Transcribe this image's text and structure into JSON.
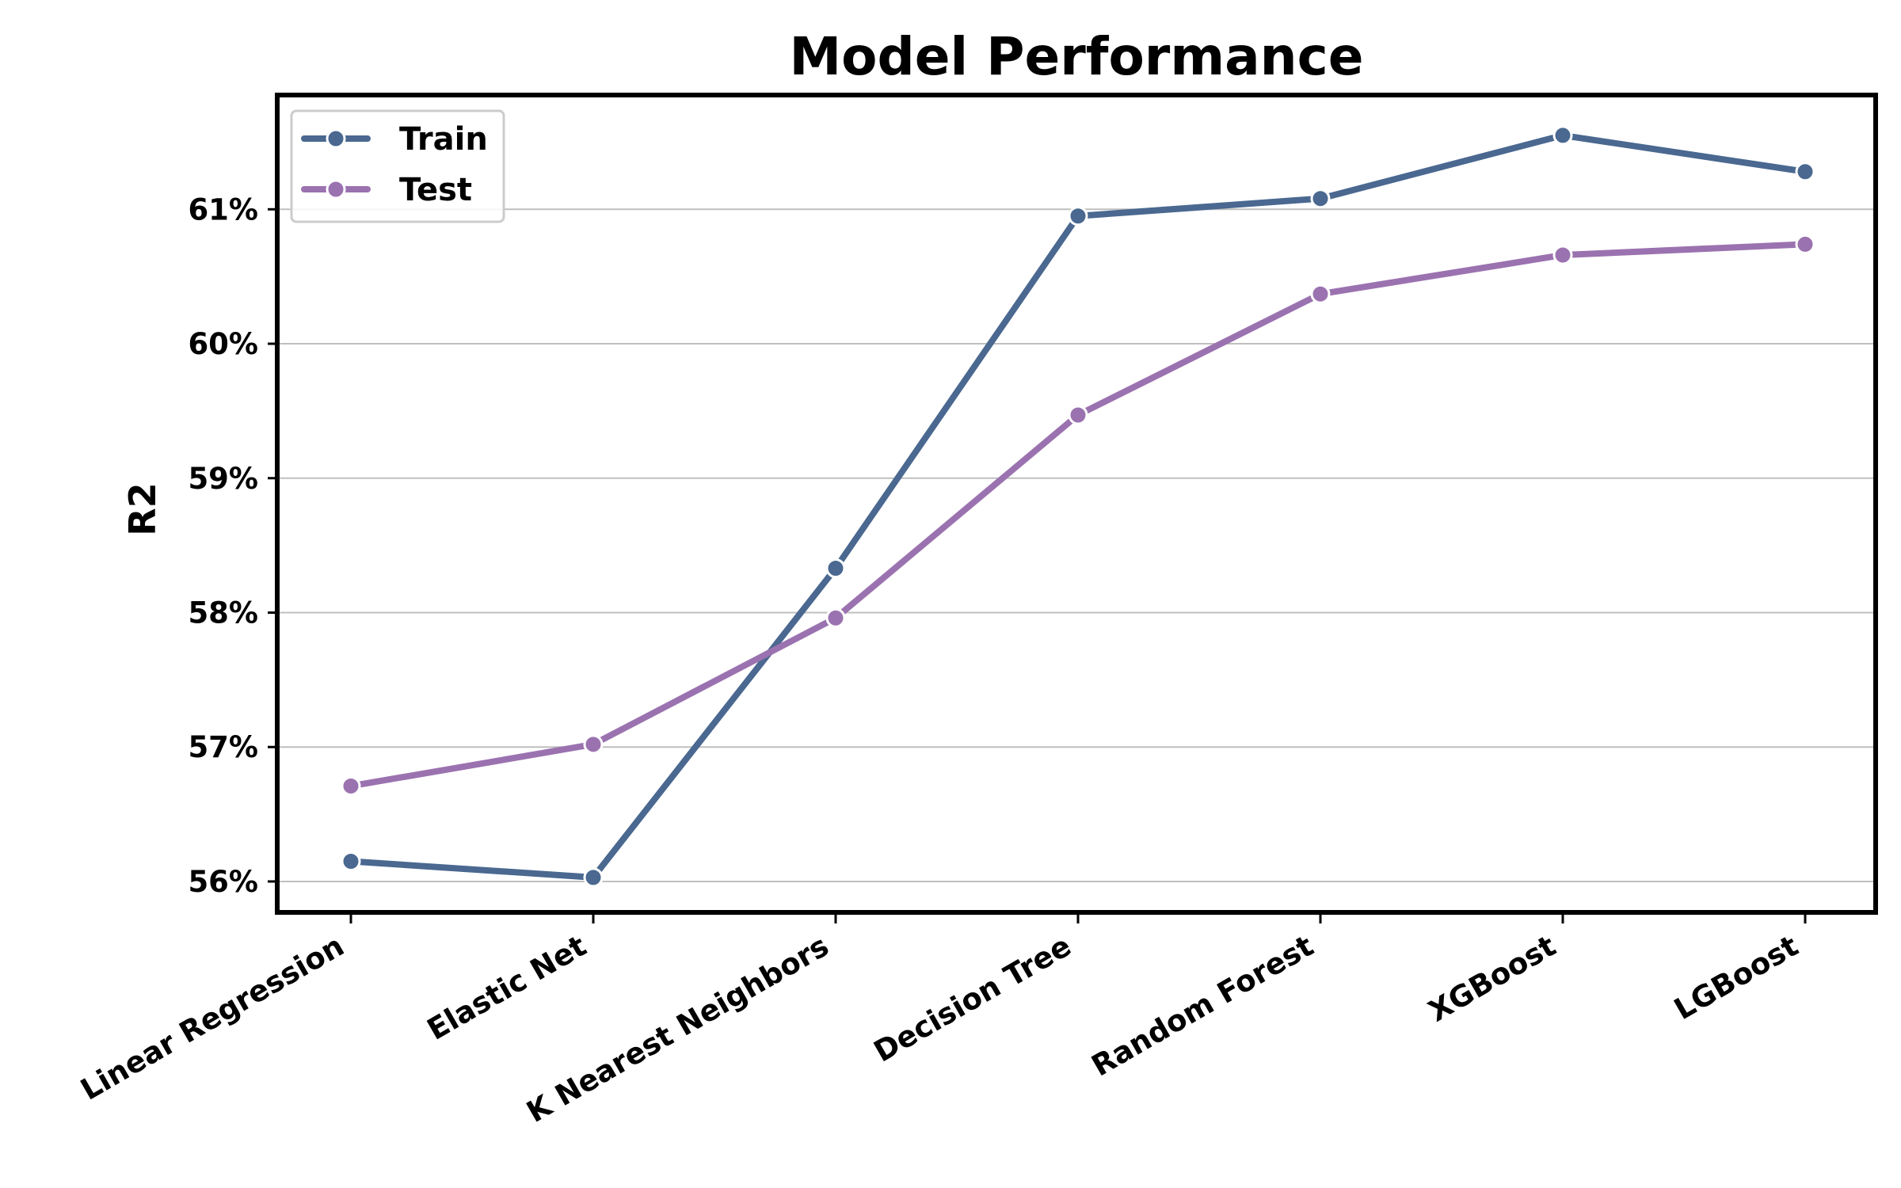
{
  "chart_data": {
    "type": "line",
    "title": "Model Performance",
    "xlabel": "",
    "ylabel": "R2",
    "categories": [
      "Linear Regression",
      "Elastic Net",
      "K Nearest Neighbors",
      "Decision Tree",
      "Random Forest",
      "XGBoost",
      "LGBoost"
    ],
    "series": [
      {
        "name": "Train",
        "color": "#4a6890",
        "values": [
          56.15,
          56.03,
          58.33,
          60.95,
          61.08,
          61.55,
          61.28
        ]
      },
      {
        "name": "Test",
        "color": "#9b72b0",
        "values": [
          56.71,
          57.02,
          57.96,
          59.47,
          60.37,
          60.66,
          60.74
        ]
      }
    ],
    "yticks": [
      56,
      57,
      58,
      59,
      60,
      61
    ],
    "ytick_labels": [
      "56%",
      "57%",
      "58%",
      "59%",
      "60%",
      "61%"
    ],
    "ylim": [
      55.77,
      61.85
    ],
    "grid": "horizontal",
    "legend_position": "upper-left"
  }
}
